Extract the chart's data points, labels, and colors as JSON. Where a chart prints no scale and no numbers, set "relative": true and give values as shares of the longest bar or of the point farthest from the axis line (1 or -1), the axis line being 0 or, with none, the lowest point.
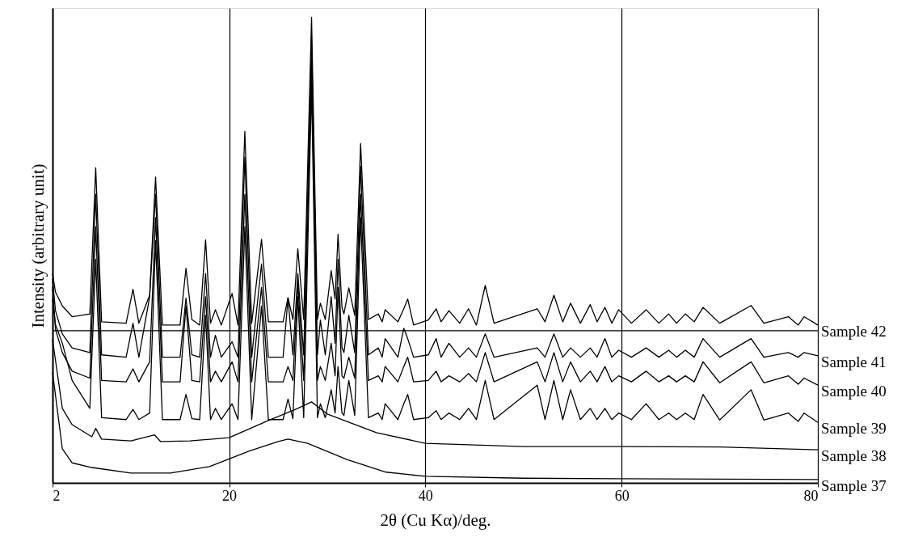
{
  "chart_data": {
    "type": "line",
    "relative": true,
    "xlabel": "2θ (Cu Kα)/deg.",
    "ylabel": "Intensity (arbitrary unit)",
    "xlim": [
      2,
      80
    ],
    "xticks": [
      2,
      20,
      40,
      60,
      80
    ],
    "grid": "x",
    "legend": false,
    "marker": "none",
    "line_style": "solid",
    "x": [
      2,
      2.3,
      3,
      4,
      5.8,
      6.4,
      7,
      9.5,
      10.2,
      10.8,
      11.9,
      12.5,
      13.2,
      15,
      15.6,
      16.2,
      17,
      17.6,
      18.1,
      18.6,
      19.2,
      20.3,
      20.9,
      21.6,
      22.3,
      23.3,
      24,
      25.5,
      26,
      26.5,
      27,
      27.6,
      28.4,
      29,
      29.3,
      29.8,
      30.4,
      30.8,
      31.1,
      31.5,
      31.7,
      32.2,
      32.8,
      33.4,
      34.2,
      35.2,
      35.6,
      35.9,
      37.2,
      37.8,
      38.2,
      38.8,
      40.3,
      41.1,
      41.6,
      42.4,
      43.5,
      44.4,
      45.2,
      46.1,
      47,
      51.4,
      52.2,
      53.1,
      54,
      54.8,
      55.8,
      56.8,
      57.5,
      58.3,
      59,
      59.7,
      61,
      62.5,
      63.8,
      64.8,
      65.6,
      66.5,
      67.4,
      68.3,
      70,
      73.2,
      74.5,
      77,
      78,
      78.6,
      80
    ],
    "series": [
      {
        "name": "Sample 42",
        "color": "#000000",
        "values": [
          0.45,
          0.41,
          0.38,
          0.357,
          0.363,
          0.677,
          0.346,
          0.343,
          0.416,
          0.343,
          0.403,
          0.657,
          0.339,
          0.339,
          0.461,
          0.351,
          0.339,
          0.522,
          0.343,
          0.372,
          0.339,
          0.407,
          0.339,
          0.755,
          0.343,
          0.523,
          0.346,
          0.346,
          0.398,
          0.351,
          0.503,
          0.351,
          1,
          0.351,
          0.386,
          0.351,
          0.456,
          0.395,
          0.534,
          0.377,
          0.363,
          0.419,
          0.36,
          0.729,
          0.351,
          0.363,
          0.346,
          0.372,
          0.346,
          0.374,
          0.395,
          0.339,
          0.35,
          0.374,
          0.346,
          0.37,
          0.343,
          0.374,
          0.339,
          0.424,
          0.343,
          0.374,
          0.346,
          0.403,
          0.346,
          0.386,
          0.343,
          0.383,
          0.346,
          0.377,
          0.343,
          0.372,
          0.343,
          0.372,
          0.343,
          0.363,
          0.343,
          0.363,
          0.346,
          0.377,
          0.343,
          0.381,
          0.343,
          0.357,
          0.339,
          0.357,
          0.339
        ]
      },
      {
        "name": "Sample 41",
        "color": "#000000",
        "values": [
          0.438,
          0.37,
          0.32,
          0.29,
          0.28,
          0.62,
          0.275,
          0.27,
          0.343,
          0.27,
          0.4,
          0.62,
          0.27,
          0.27,
          0.397,
          0.275,
          0.27,
          0.45,
          0.27,
          0.317,
          0.27,
          0.303,
          0.27,
          0.7,
          0.27,
          0.47,
          0.27,
          0.27,
          0.397,
          0.275,
          0.45,
          0.275,
          0.95,
          0.275,
          0.35,
          0.275,
          0.4,
          0.3,
          0.48,
          0.29,
          0.28,
          0.36,
          0.28,
          0.68,
          0.275,
          0.29,
          0.27,
          0.31,
          0.27,
          0.332,
          0.31,
          0.27,
          0.275,
          0.31,
          0.27,
          0.3,
          0.27,
          0.29,
          0.27,
          0.32,
          0.27,
          0.29,
          0.27,
          0.32,
          0.27,
          0.29,
          0.27,
          0.29,
          0.27,
          0.31,
          0.27,
          0.285,
          0.27,
          0.29,
          0.27,
          0.285,
          0.27,
          0.285,
          0.27,
          0.31,
          0.27,
          0.31,
          0.27,
          0.28,
          0.27,
          0.28,
          0.273
        ]
      },
      {
        "name": "Sample 40",
        "color": "#000000",
        "values": [
          0.421,
          0.33,
          0.28,
          0.24,
          0.225,
          0.55,
          0.22,
          0.217,
          0.245,
          0.217,
          0.26,
          0.57,
          0.217,
          0.217,
          0.38,
          0.22,
          0.217,
          0.4,
          0.217,
          0.24,
          0.217,
          0.26,
          0.217,
          0.62,
          0.217,
          0.42,
          0.217,
          0.217,
          0.25,
          0.22,
          0.43,
          0.22,
          0.9,
          0.22,
          0.25,
          0.22,
          0.3,
          0.23,
          0.42,
          0.23,
          0.225,
          0.27,
          0.225,
          0.62,
          0.22,
          0.23,
          0.217,
          0.25,
          0.217,
          0.25,
          0.27,
          0.217,
          0.22,
          0.24,
          0.217,
          0.23,
          0.217,
          0.235,
          0.217,
          0.28,
          0.217,
          0.26,
          0.217,
          0.28,
          0.217,
          0.26,
          0.217,
          0.24,
          0.217,
          0.25,
          0.217,
          0.23,
          0.217,
          0.24,
          0.217,
          0.23,
          0.217,
          0.23,
          0.217,
          0.26,
          0.215,
          0.26,
          0.215,
          0.23,
          0.212,
          0.225,
          0.21
        ]
      },
      {
        "name": "Sample 39",
        "color": "#000000",
        "values": [
          0.395,
          0.34,
          0.3,
          0.22,
          0.16,
          0.48,
          0.14,
          0.136,
          0.158,
          0.136,
          0.15,
          0.52,
          0.136,
          0.136,
          0.19,
          0.138,
          0.136,
          0.36,
          0.136,
          0.16,
          0.136,
          0.17,
          0.136,
          0.55,
          0.136,
          0.38,
          0.136,
          0.136,
          0.18,
          0.138,
          0.4,
          0.14,
          0.85,
          0.14,
          0.17,
          0.14,
          0.2,
          0.15,
          0.25,
          0.15,
          0.145,
          0.22,
          0.145,
          0.57,
          0.14,
          0.15,
          0.136,
          0.17,
          0.136,
          0.17,
          0.19,
          0.136,
          0.14,
          0.155,
          0.136,
          0.15,
          0.136,
          0.16,
          0.136,
          0.22,
          0.136,
          0.21,
          0.136,
          0.22,
          0.136,
          0.2,
          0.136,
          0.16,
          0.136,
          0.16,
          0.136,
          0.15,
          0.136,
          0.17,
          0.136,
          0.15,
          0.136,
          0.15,
          0.136,
          0.19,
          0.135,
          0.2,
          0.135,
          0.15,
          0.132,
          0.15,
          0.13
        ]
      },
      {
        "name": "Sample 38",
        "color": "#000000",
        "x": [
          2,
          3,
          4,
          6,
          6.4,
          7,
          10,
          12.4,
          13,
          16,
          20,
          24,
          27,
          28.4,
          30,
          35,
          40,
          50,
          60,
          70,
          80
        ],
        "values": [
          0.308,
          0.16,
          0.125,
          0.099,
          0.117,
          0.094,
          0.09,
          0.103,
          0.089,
          0.09,
          0.097,
          0.134,
          0.16,
          0.174,
          0.148,
          0.108,
          0.085,
          0.078,
          0.078,
          0.077,
          0.071
        ]
      },
      {
        "name": "Sample 37",
        "color": "#000000",
        "x": [
          2,
          3,
          4,
          6,
          10,
          14,
          18,
          22,
          25,
          26,
          28,
          32,
          36,
          40,
          50,
          60,
          80
        ],
        "values": [
          0.238,
          0.073,
          0.043,
          0.033,
          0.021,
          0.021,
          0.035,
          0.068,
          0.089,
          0.094,
          0.085,
          0.05,
          0.023,
          0.014,
          0.01,
          0.009,
          0.007
        ]
      }
    ],
    "ref_lines": [
      {
        "axis": "y",
        "value": 0.327,
        "color": "#000000",
        "line_style": "solid"
      }
    ]
  }
}
